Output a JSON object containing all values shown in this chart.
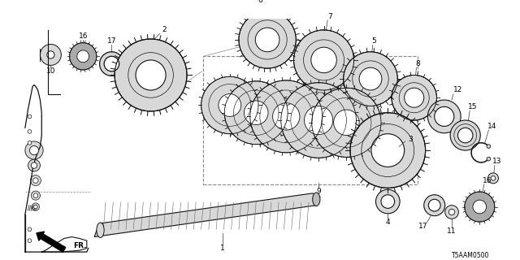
{
  "background_color": "#ffffff",
  "diagram_code": "T5AAM0500",
  "border_color": "#111111",
  "line_color": "#333333",
  "fill_light": "#d8d8d8",
  "fill_dark": "#aaaaaa",
  "figsize": [
    6.4,
    3.2
  ],
  "dpi": 100
}
